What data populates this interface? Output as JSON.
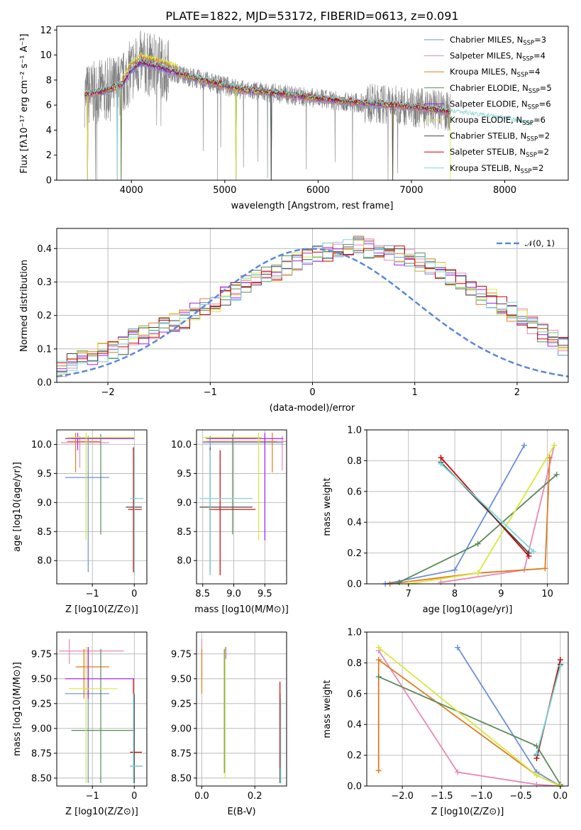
{
  "colors": {
    "Chabrier MILES": "#6a8fd8",
    "Salpeter MILES": "#e48ab8",
    "Kroupa MILES": "#e07b1f",
    "Chabrier ELODIE": "#5a8a5a",
    "Salpeter ELODIE": "#a020f0",
    "Kroupa ELODIE": "#d8e83a",
    "Chabrier STELIB": "#444444",
    "Salpeter STELIB": "#cc0000",
    "Kroupa STELIB": "#7fd6d6",
    "data": "#808080",
    "normal": "#5b87d6"
  },
  "chart_data": [
    {
      "id": "spectrum",
      "type": "line",
      "title": "PLATE=1822, MJD=53172, FIBERID=0613, z=0.091",
      "xlabel": "wavelength [Angstrom, rest frame]",
      "ylabel": "Flux [fλ10⁻¹⁷ erg cm⁻² s⁻¹ A⁻¹]",
      "xlim": [
        3200,
        8680
      ],
      "ylim": [
        0,
        12.3
      ],
      "xticks": [
        "4000",
        "5000",
        "6000",
        "7000",
        "8000"
      ],
      "yticks": [
        "0",
        "2",
        "4",
        "6",
        "8",
        "10",
        "12"
      ],
      "grid": false,
      "legend_position": "top-right",
      "legend": [
        "Chabrier MILES, N_SSP=3",
        "Salpeter MILES, N_SSP=4",
        "Kroupa MILES, N_SSP=4",
        "Chabrier ELODIE, N_SSP=5",
        "Salpeter ELODIE, N_SSP=6",
        "Kroupa ELODIE, N_SSP=6",
        "Chabrier STELIB, N_SSP=2",
        "Salpeter STELIB, N_SSP=2",
        "Kroupa STELIB, N_SSP=2"
      ],
      "continuum_model": {
        "wavelength": [
          3500,
          3700,
          3900,
          4000,
          4100,
          4300,
          4500,
          4800,
          5200,
          5600,
          6000,
          6400,
          6800,
          7200,
          7600,
          8000,
          8300
        ],
        "flux": [
          6.8,
          7.1,
          7.6,
          8.8,
          9.4,
          9.0,
          8.5,
          7.9,
          7.2,
          6.9,
          6.5,
          6.2,
          6.0,
          5.7,
          5.2,
          4.8,
          4.3
        ]
      }
    },
    {
      "id": "residuals",
      "type": "bar",
      "xlabel": "(data-model)/error",
      "ylabel": "Normed distribution",
      "xlim": [
        -2.5,
        2.5
      ],
      "ylim": [
        0,
        0.46
      ],
      "xticks": [
        "−2",
        "−1",
        "0",
        "1",
        "2"
      ],
      "yticks": [
        "0.0",
        "0.1",
        "0.2",
        "0.3",
        "0.4"
      ],
      "grid": true,
      "legend_position": "top-right",
      "legend": [
        "𝒩(0, 1)"
      ],
      "bin_width": 0.1,
      "histogram_envelope": [
        0.04,
        0.06,
        0.07,
        0.08,
        0.09,
        0.1,
        0.11,
        0.13,
        0.14,
        0.15,
        0.17,
        0.18,
        0.19,
        0.21,
        0.23,
        0.24,
        0.26,
        0.27,
        0.29,
        0.31,
        0.32,
        0.33,
        0.35,
        0.36,
        0.37,
        0.38,
        0.39,
        0.4,
        0.41,
        0.41,
        0.4,
        0.4,
        0.39,
        0.38,
        0.37,
        0.36,
        0.35,
        0.33,
        0.32,
        0.3,
        0.28,
        0.26,
        0.25,
        0.23,
        0.21,
        0.19,
        0.17,
        0.15,
        0.13,
        0.11,
        0.1
      ]
    },
    {
      "id": "age-vs-Z",
      "type": "scatter",
      "xlabel": "Z [log10(Z/Z⊙)]",
      "ylabel": "age  [log10(age/yr)]",
      "xlim": [
        -1.85,
        0.3
      ],
      "ylim": [
        7.6,
        10.25
      ],
      "xticks": [
        "−1",
        "0"
      ],
      "yticks": [
        "8.0",
        "8.5",
        "9.0",
        "9.5",
        "10.0"
      ],
      "grid": true
    },
    {
      "id": "age-vs-mass",
      "type": "scatter",
      "xlabel": "mass [log10(M/M⊙)]",
      "xlim": [
        8.4,
        9.85
      ],
      "ylim": [
        7.6,
        10.25
      ],
      "xticks": [
        "8.5",
        "9.0",
        "9.5"
      ],
      "yticks": [
        "8.0",
        "8.5",
        "9.0",
        "9.5",
        "10.0"
      ],
      "grid": true
    },
    {
      "id": "mass-weight-vs-age",
      "type": "line",
      "xlabel": "age  [log10(age/yr)]",
      "ylabel": "mass weight",
      "xlim": [
        6.1,
        10.45
      ],
      "ylim": [
        0,
        1.0
      ],
      "xticks": [
        "7",
        "8",
        "9",
        "10"
      ],
      "yticks": [
        "0.0",
        "0.2",
        "0.4",
        "0.6",
        "0.8",
        "1.0"
      ],
      "grid": true,
      "series": [
        {
          "model": "Chabrier MILES",
          "x": [
            6.5,
            8.0,
            9.5
          ],
          "y": [
            0.0,
            0.09,
            0.9
          ]
        },
        {
          "model": "Salpeter MILES",
          "x": [
            7.7,
            9.5,
            10.15
          ],
          "y": [
            0.01,
            0.09,
            0.9
          ]
        },
        {
          "model": "Kroupa MILES",
          "x": [
            6.6,
            8.5,
            9.95,
            10.05
          ],
          "y": [
            0.0,
            0.07,
            0.1,
            0.82
          ]
        },
        {
          "model": "Chabrier ELODIE",
          "x": [
            6.8,
            8.5,
            10.2
          ],
          "y": [
            0.01,
            0.26,
            0.71
          ]
        },
        {
          "model": "Kroupa ELODIE",
          "x": [
            7.0,
            8.5,
            10.15
          ],
          "y": [
            0.0,
            0.07,
            0.9
          ]
        },
        {
          "model": "Salpeter STELIB",
          "x": [
            7.7,
            9.6
          ],
          "y": [
            0.82,
            0.18
          ]
        },
        {
          "model": "Chabrier STELIB",
          "x": [
            7.7,
            9.6
          ],
          "y": [
            0.79,
            0.2
          ]
        },
        {
          "model": "Kroupa STELIB",
          "x": [
            7.7,
            9.7
          ],
          "y": [
            0.78,
            0.21
          ]
        }
      ]
    },
    {
      "id": "mass-vs-Z",
      "type": "scatter",
      "xlabel": "Z [log10(Z/Z⊙)]",
      "ylabel": "mass [log10(M/M⊙)]",
      "xlim": [
        -1.85,
        0.3
      ],
      "ylim": [
        8.42,
        9.97
      ],
      "xticks": [
        "−1",
        "0"
      ],
      "yticks": [
        "8.50",
        "8.75",
        "9.00",
        "9.25",
        "9.50",
        "9.75"
      ],
      "grid": true
    },
    {
      "id": "mass-vs-EBV",
      "type": "scatter",
      "xlabel": "E(B-V)",
      "xlim": [
        -0.02,
        0.32
      ],
      "ylim": [
        8.42,
        9.97
      ],
      "xticks": [
        "0.0",
        "0.2"
      ],
      "yticks": [
        "8.50",
        "8.75",
        "9.00",
        "9.25",
        "9.50",
        "9.75"
      ],
      "grid": true
    },
    {
      "id": "mass-weight-vs-Z",
      "type": "line",
      "xlabel": "Z [log10(Z/Z⊙)]",
      "ylabel": "mass weight",
      "xlim": [
        -2.45,
        0.1
      ],
      "ylim": [
        0,
        1.0
      ],
      "xticks": [
        "−2.0",
        "−1.5",
        "−1.0",
        "−0.5",
        "0.0"
      ],
      "yticks": [
        "0.0",
        "0.2",
        "0.4",
        "0.6",
        "0.8",
        "1.0"
      ],
      "grid": true,
      "series": [
        {
          "model": "Chabrier MILES",
          "x": [
            -1.3,
            -0.3,
            0.0
          ],
          "y": [
            0.9,
            0.09,
            0.0
          ]
        },
        {
          "model": "Salpeter MILES",
          "x": [
            -2.3,
            -1.3,
            -0.3,
            0.0
          ],
          "y": [
            0.88,
            0.09,
            0.01,
            0.0
          ]
        },
        {
          "model": "Kroupa MILES",
          "x": [
            -2.3,
            -2.3,
            -0.3,
            0.0
          ],
          "y": [
            0.1,
            0.82,
            0.07,
            0.0
          ]
        },
        {
          "model": "Chabrier ELODIE",
          "x": [
            -2.3,
            -0.3,
            0.0
          ],
          "y": [
            0.71,
            0.26,
            0.01
          ]
        },
        {
          "model": "Kroupa ELODIE",
          "x": [
            -2.3,
            -0.3,
            0.0
          ],
          "y": [
            0.9,
            0.07,
            0.0
          ]
        },
        {
          "model": "Salpeter STELIB",
          "x": [
            -0.3,
            0.0
          ],
          "y": [
            0.18,
            0.82
          ]
        },
        {
          "model": "Chabrier STELIB",
          "x": [
            -0.3,
            0.0
          ],
          "y": [
            0.2,
            0.79
          ]
        },
        {
          "model": "Kroupa STELIB",
          "x": [
            -0.3,
            0.0
          ],
          "y": [
            0.21,
            0.78
          ]
        }
      ]
    }
  ]
}
